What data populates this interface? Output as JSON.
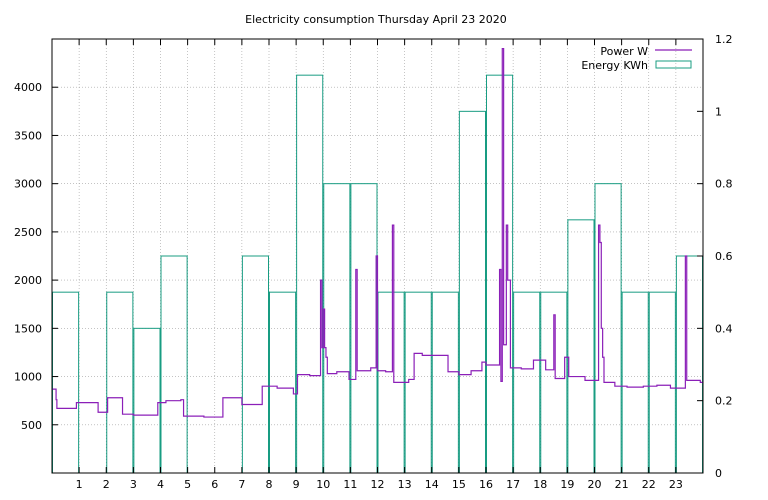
{
  "chart_data": {
    "type": "bar",
    "title": "Electricity consumption Thursday April 23 2020",
    "xlabel": "",
    "ylabel": "",
    "y2label": "",
    "xlim": [
      0,
      24
    ],
    "ylim": [
      0,
      4500
    ],
    "y2lim": [
      0,
      1.2
    ],
    "x_ticks": [
      1,
      2,
      3,
      4,
      5,
      6,
      7,
      8,
      9,
      10,
      11,
      12,
      13,
      14,
      15,
      16,
      17,
      18,
      19,
      20,
      21,
      22,
      23
    ],
    "y_ticks": [
      500,
      1000,
      1500,
      2000,
      2500,
      3000,
      3500,
      4000
    ],
    "y2_ticks": [
      0,
      0.2,
      0.4,
      0.6,
      0.8,
      1,
      1.2
    ],
    "grid": true,
    "legend_position": "top-right",
    "colors": {
      "power": "#8b1fb8",
      "energy": "#189c82"
    },
    "series": [
      {
        "name": "Power W",
        "style": "step-line",
        "axis": "y",
        "points": [
          [
            0.0,
            870
          ],
          [
            0.15,
            760
          ],
          [
            0.18,
            670
          ],
          [
            0.9,
            730
          ],
          [
            1.7,
            630
          ],
          [
            2.05,
            780
          ],
          [
            2.6,
            610
          ],
          [
            3.0,
            600
          ],
          [
            3.9,
            730
          ],
          [
            4.2,
            750
          ],
          [
            4.75,
            760
          ],
          [
            4.85,
            590
          ],
          [
            5.6,
            580
          ],
          [
            6.3,
            780
          ],
          [
            7.0,
            710
          ],
          [
            7.75,
            900
          ],
          [
            8.3,
            880
          ],
          [
            8.9,
            820
          ],
          [
            9.05,
            1020
          ],
          [
            9.5,
            1010
          ],
          [
            9.85,
            1010
          ],
          [
            9.9,
            2000
          ],
          [
            9.95,
            1300
          ],
          [
            10.0,
            1700
          ],
          [
            10.05,
            1300
          ],
          [
            10.1,
            1200
          ],
          [
            10.15,
            1030
          ],
          [
            10.5,
            1050
          ],
          [
            10.95,
            970
          ],
          [
            11.2,
            2110
          ],
          [
            11.25,
            1060
          ],
          [
            11.75,
            1090
          ],
          [
            11.95,
            2250
          ],
          [
            12.0,
            1060
          ],
          [
            12.3,
            1050
          ],
          [
            12.55,
            2570
          ],
          [
            12.6,
            940
          ],
          [
            13.15,
            970
          ],
          [
            13.35,
            1240
          ],
          [
            13.65,
            1220
          ],
          [
            14.6,
            1050
          ],
          [
            15.0,
            1020
          ],
          [
            15.45,
            1060
          ],
          [
            15.85,
            1150
          ],
          [
            16.0,
            1120
          ],
          [
            16.5,
            2110
          ],
          [
            16.55,
            950
          ],
          [
            16.6,
            4400
          ],
          [
            16.65,
            1330
          ],
          [
            16.75,
            2570
          ],
          [
            16.8,
            2000
          ],
          [
            16.9,
            1090
          ],
          [
            17.3,
            1080
          ],
          [
            17.75,
            1170
          ],
          [
            18.2,
            1070
          ],
          [
            18.5,
            1640
          ],
          [
            18.55,
            980
          ],
          [
            18.9,
            1200
          ],
          [
            19.05,
            1000
          ],
          [
            19.65,
            960
          ],
          [
            20.15,
            2570
          ],
          [
            20.2,
            2390
          ],
          [
            20.25,
            1500
          ],
          [
            20.3,
            1200
          ],
          [
            20.35,
            940
          ],
          [
            20.75,
            900
          ],
          [
            21.2,
            890
          ],
          [
            21.8,
            900
          ],
          [
            22.3,
            910
          ],
          [
            22.8,
            880
          ],
          [
            23.35,
            2250
          ],
          [
            23.4,
            960
          ],
          [
            23.9,
            940
          ],
          [
            24.0,
            940
          ]
        ]
      },
      {
        "name": "Energy KWh",
        "style": "boxes",
        "axis": "y2",
        "x": [
          0,
          1,
          2,
          3,
          4,
          5,
          6,
          7,
          8,
          9,
          10,
          11,
          12,
          13,
          14,
          15,
          16,
          17,
          18,
          19,
          20,
          21,
          22,
          23
        ],
        "values": [
          0.5,
          0,
          0.5,
          0.4,
          0.6,
          0,
          0,
          0.6,
          0.5,
          1.1,
          0.8,
          0.8,
          0.5,
          0.5,
          0.5,
          1.0,
          1.1,
          0.5,
          0.5,
          0.7,
          0.8,
          0.5,
          0.5,
          0.6
        ]
      }
    ]
  }
}
